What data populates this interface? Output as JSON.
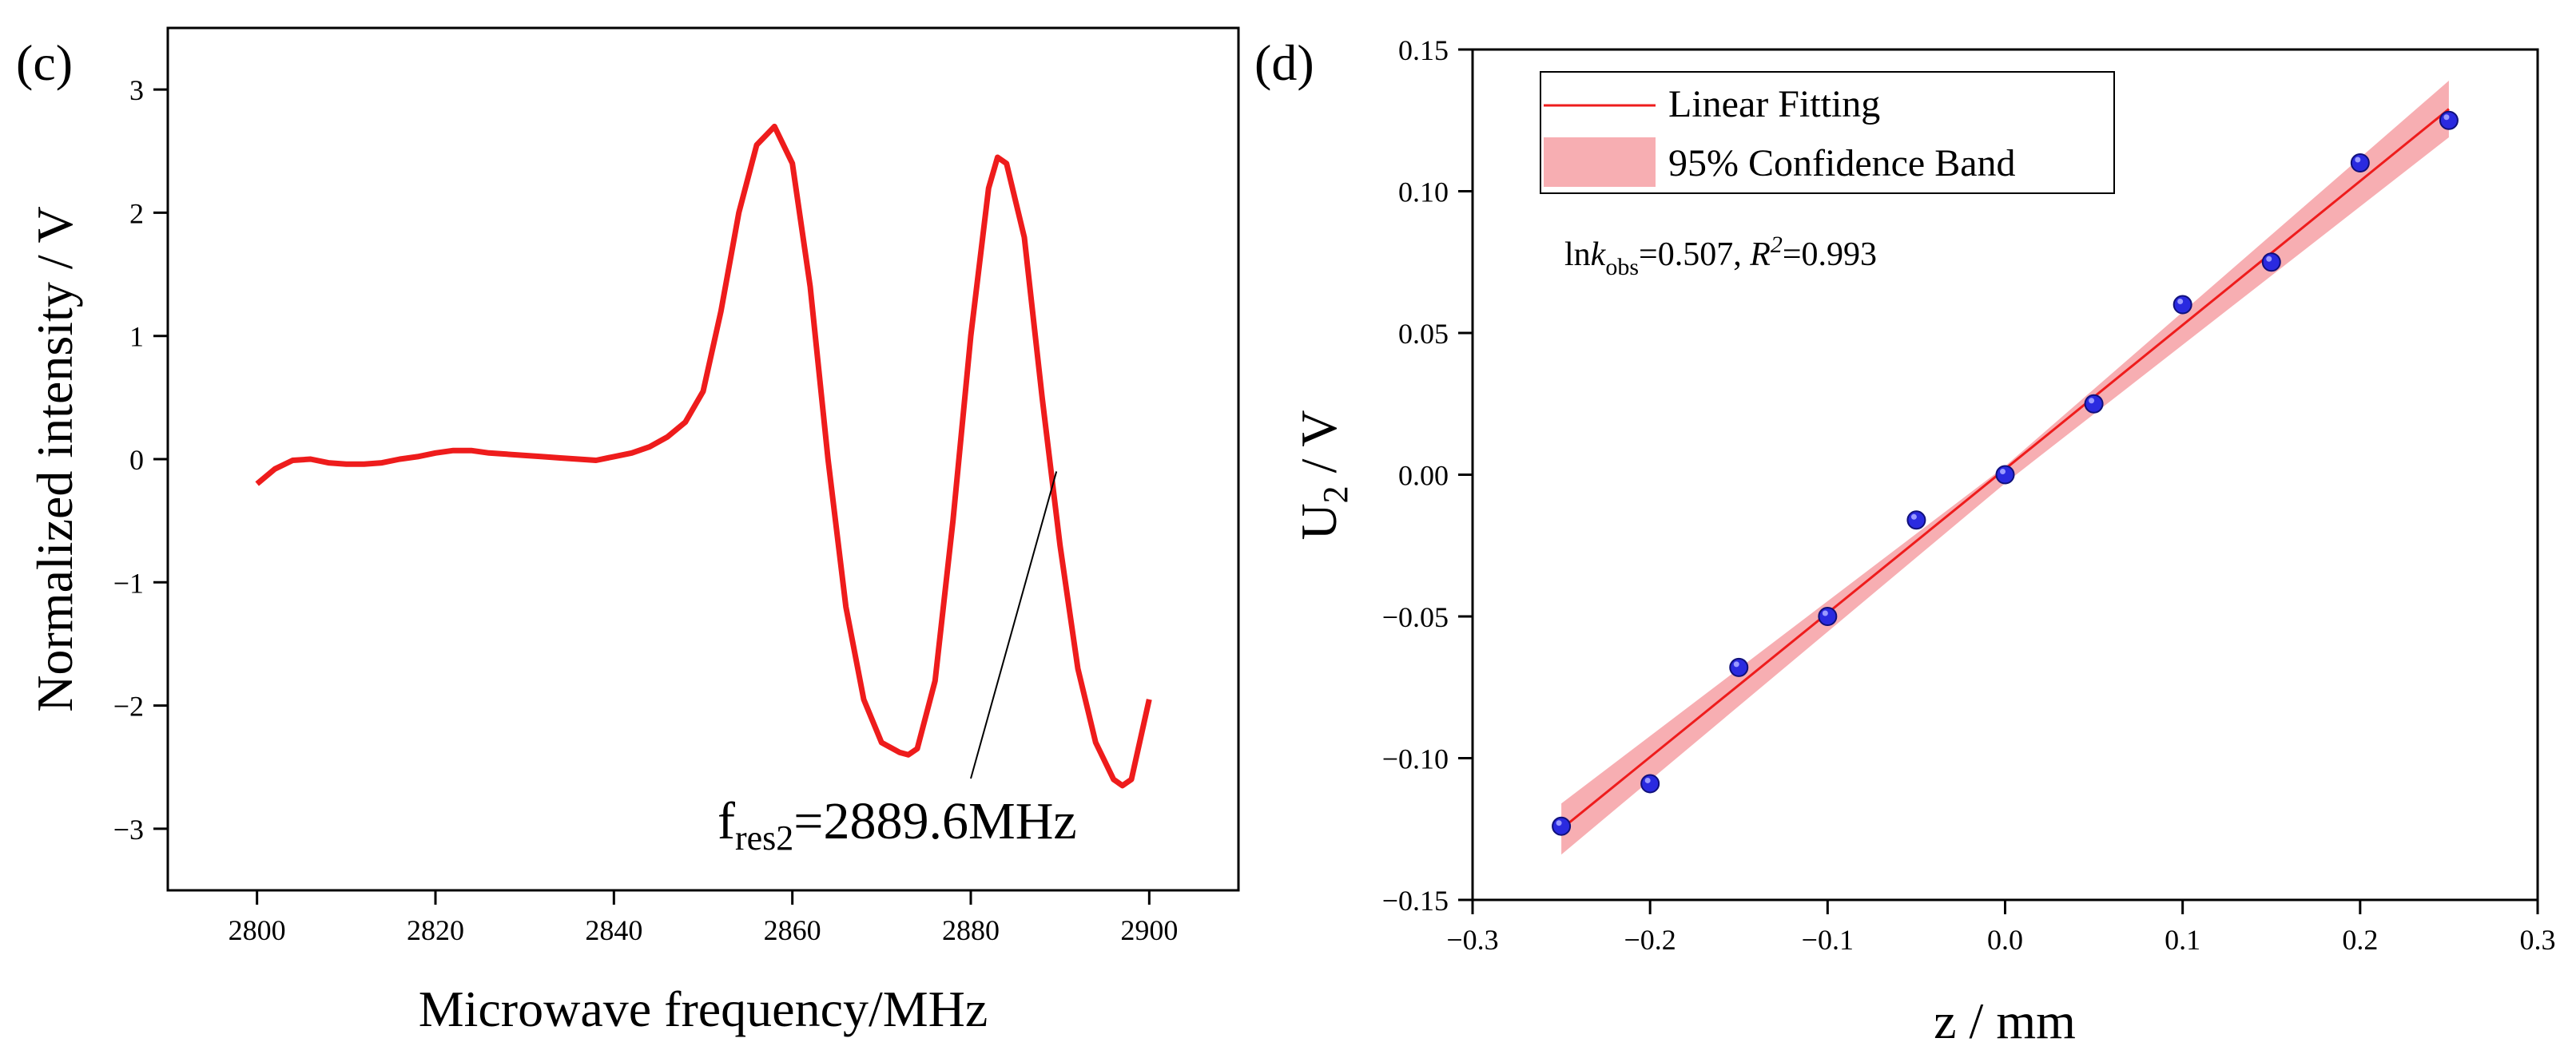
{
  "chart_data": [
    {
      "type": "line",
      "panel_label": "(c)",
      "xlabel": "Microwave frequency/MHz",
      "ylabel": "Normalized intensity / V",
      "xlim": [
        2790,
        2910
      ],
      "ylim": [
        -3.5,
        3.5
      ],
      "xticks": [
        2800,
        2820,
        2840,
        2860,
        2880,
        2900
      ],
      "yticks": [
        3,
        2,
        1,
        0,
        -1,
        -2,
        -3
      ],
      "ytick_labels": [
        "3",
        "2",
        "1",
        "0",
        "−1",
        "−2",
        "−3"
      ],
      "grid": false,
      "line_color": "#ee1c1c",
      "series": [
        {
          "x": [
            2800,
            2802,
            2804,
            2806,
            2808,
            2810,
            2812,
            2814,
            2816,
            2818,
            2820,
            2822,
            2824,
            2826,
            2828,
            2830,
            2832,
            2834,
            2836,
            2838,
            2840,
            2842,
            2844,
            2846,
            2848,
            2850,
            2852,
            2854,
            2856,
            2858,
            2860,
            2862,
            2864,
            2866,
            2868,
            2870,
            2872,
            2873,
            2874,
            2876,
            2878,
            2880,
            2882,
            2883,
            2884,
            2886,
            2888,
            2890,
            2892,
            2894,
            2896,
            2897,
            2898,
            2900
          ],
          "y": [
            -0.2,
            -0.08,
            -0.01,
            0.0,
            -0.03,
            -0.04,
            -0.04,
            -0.03,
            0.0,
            0.02,
            0.05,
            0.07,
            0.07,
            0.05,
            0.04,
            0.03,
            0.02,
            0.01,
            0.0,
            -0.01,
            0.02,
            0.05,
            0.1,
            0.18,
            0.3,
            0.55,
            1.2,
            2.0,
            2.55,
            2.7,
            2.4,
            1.4,
            0.0,
            -1.2,
            -1.95,
            -2.3,
            -2.38,
            -2.4,
            -2.35,
            -1.8,
            -0.5,
            1.0,
            2.2,
            2.45,
            2.4,
            1.8,
            0.5,
            -0.7,
            -1.7,
            -2.3,
            -2.6,
            -2.65,
            -2.6,
            -1.95
          ]
        }
      ],
      "annotation": {
        "text_main": "f",
        "text_sub": "res2",
        "text_rest": "=2889.6MHz",
        "points_to": [
          2889.6,
          -0.1
        ]
      }
    },
    {
      "type": "scatter",
      "panel_label": "(d)",
      "xlabel": "z / mm",
      "ylabel_main": "U",
      "ylabel_sub": "2",
      "ylabel_rest": " / V",
      "xlim": [
        -0.3,
        0.3
      ],
      "ylim": [
        -0.15,
        0.15
      ],
      "xticks": [
        -0.3,
        -0.2,
        -0.1,
        0.0,
        0.1,
        0.2,
        0.3
      ],
      "xtick_labels": [
        "−0.3",
        "−0.2",
        "−0.1",
        "0.0",
        "0.1",
        "0.2",
        "0.3"
      ],
      "yticks": [
        0.15,
        0.1,
        0.05,
        0.0,
        -0.05,
        -0.1,
        -0.15
      ],
      "ytick_labels": [
        "0.15",
        "0.10",
        "0.05",
        "0.00",
        "−0.05",
        "−0.10",
        "−0.15"
      ],
      "grid": false,
      "points": {
        "x": [
          -0.25,
          -0.2,
          -0.15,
          -0.1,
          -0.05,
          0.0,
          0.05,
          0.1,
          0.15,
          0.2,
          0.25
        ],
        "y": [
          -0.124,
          -0.109,
          -0.068,
          -0.05,
          -0.016,
          0.0,
          0.025,
          0.06,
          0.075,
          0.11,
          0.125
        ],
        "color": "#2a2ae0"
      },
      "fit": {
        "name": "Linear Fitting",
        "x": [
          -0.25,
          0.25
        ],
        "y": [
          -0.125,
          0.129
        ],
        "color": "#ee1c1c"
      },
      "band": {
        "name": "95% Confidence Band",
        "x": [
          -0.25,
          0.0,
          0.25
        ],
        "lower": [
          -0.134,
          -0.003,
          0.119
        ],
        "upper": [
          -0.116,
          0.003,
          0.139
        ],
        "color": "#f7aeb2"
      },
      "legend_position": "top-left",
      "stats": {
        "ln": "ln",
        "k": "k",
        "k_sub": "obs",
        "k_val": "=0.507, ",
        "r": "R",
        "r_sup": "2",
        "r_val": "=0.993"
      }
    }
  ]
}
